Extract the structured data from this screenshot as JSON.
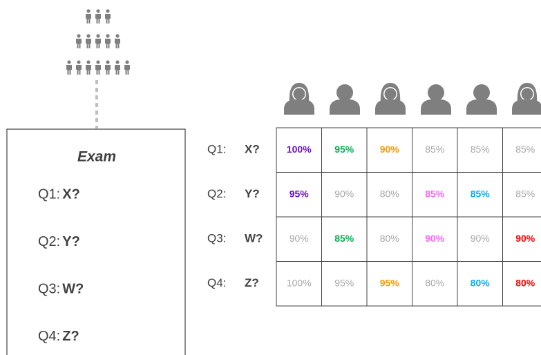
{
  "exam": {
    "title": "Exam",
    "questions": [
      {
        "label": "Q1:",
        "answer": "X?"
      },
      {
        "label": "Q2:",
        "answer": "Y?"
      },
      {
        "label": "Q3:",
        "answer": "W?"
      },
      {
        "label": "Q4:",
        "answer": "Z?"
      }
    ]
  },
  "table": {
    "rows": [
      {
        "label": "Q1:",
        "answer": "X?",
        "cells": [
          {
            "text": "100%",
            "color": "#6a0dd8",
            "bold": true
          },
          {
            "text": "95%",
            "color": "#00b050",
            "bold": true
          },
          {
            "text": "90%",
            "color": "#ff9900",
            "bold": true
          },
          {
            "text": "85%",
            "color": "#a6a6a6",
            "bold": false
          },
          {
            "text": "85%",
            "color": "#a6a6a6",
            "bold": false
          },
          {
            "text": "85%",
            "color": "#a6a6a6",
            "bold": false
          }
        ]
      },
      {
        "label": "Q2:",
        "answer": "Y?",
        "cells": [
          {
            "text": "95%",
            "color": "#6a0dd8",
            "bold": true
          },
          {
            "text": "90%",
            "color": "#a6a6a6",
            "bold": false
          },
          {
            "text": "80%",
            "color": "#a6a6a6",
            "bold": false
          },
          {
            "text": "85%",
            "color": "#ff66ff",
            "bold": true
          },
          {
            "text": "85%",
            "color": "#00b0f0",
            "bold": true
          },
          {
            "text": "85%",
            "color": "#a6a6a6",
            "bold": false
          }
        ]
      },
      {
        "label": "Q3:",
        "answer": "W?",
        "cells": [
          {
            "text": "90%",
            "color": "#a6a6a6",
            "bold": false
          },
          {
            "text": "85%",
            "color": "#00b050",
            "bold": true
          },
          {
            "text": "80%",
            "color": "#a6a6a6",
            "bold": false
          },
          {
            "text": "90%",
            "color": "#ff66ff",
            "bold": true
          },
          {
            "text": "90%",
            "color": "#a6a6a6",
            "bold": false
          },
          {
            "text": "90%",
            "color": "#ff0000",
            "bold": true
          }
        ]
      },
      {
        "label": "Q4:",
        "answer": "Z?",
        "cells": [
          {
            "text": "100%",
            "color": "#a6a6a6",
            "bold": false
          },
          {
            "text": "95%",
            "color": "#a6a6a6",
            "bold": false
          },
          {
            "text": "95%",
            "color": "#ff9900",
            "bold": true
          },
          {
            "text": "80%",
            "color": "#a6a6a6",
            "bold": false
          },
          {
            "text": "80%",
            "color": "#00b0f0",
            "bold": true
          },
          {
            "text": "80%",
            "color": "#ff0000",
            "bold": true
          }
        ]
      }
    ]
  }
}
